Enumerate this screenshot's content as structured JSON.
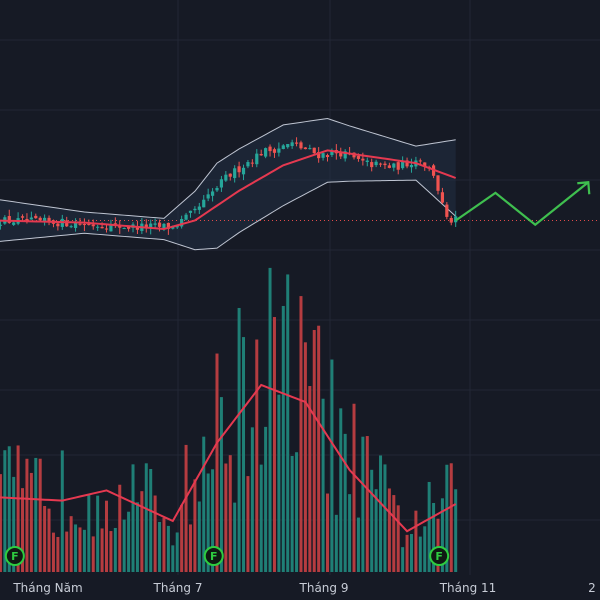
{
  "colors": {
    "background": "#161a25",
    "grid": "#222735",
    "up_candle": "#26a69a",
    "down_candle": "#ef5350",
    "moving_average": "#e53950",
    "bollinger_band": "#bfc5d2",
    "band_fill": "#233043",
    "volume_up": "#1f7f76",
    "volume_down": "#b53c40",
    "volume_ma": "#e53950",
    "forecast_arrow": "#3fbf4f",
    "dividend_marker": "#2ecc40",
    "price_line": "#e04b4b"
  },
  "chart_data": {
    "type": "candlestick",
    "title": "",
    "xlabel": "",
    "ylabel": "",
    "grid": true,
    "x_tick_labels": [
      "Tháng Năm",
      "Tháng 7",
      "Tháng 9",
      "Tháng 11",
      "2"
    ],
    "price_range": [
      0,
      100
    ],
    "volume_range": [
      0,
      100
    ],
    "price_trend_keypoints": [
      {
        "t": 0,
        "close": 38
      },
      {
        "t": 15,
        "close": 37
      },
      {
        "t": 30,
        "close": 35
      },
      {
        "t": 40,
        "close": 35
      },
      {
        "t": 45,
        "close": 42
      },
      {
        "t": 52,
        "close": 58
      },
      {
        "t": 60,
        "close": 70
      },
      {
        "t": 67,
        "close": 74
      },
      {
        "t": 73,
        "close": 69
      },
      {
        "t": 78,
        "close": 70
      },
      {
        "t": 83,
        "close": 65
      },
      {
        "t": 90,
        "close": 63
      },
      {
        "t": 96,
        "close": 67
      },
      {
        "t": 99,
        "close": 60
      },
      {
        "t": 102,
        "close": 38
      },
      {
        "t": 104,
        "close": 38
      }
    ],
    "moving_average_keypoints": [
      {
        "t": 0,
        "value": 38
      },
      {
        "t": 20,
        "value": 37
      },
      {
        "t": 38,
        "value": 34
      },
      {
        "t": 45,
        "value": 38
      },
      {
        "t": 55,
        "value": 52
      },
      {
        "t": 65,
        "value": 64
      },
      {
        "t": 75,
        "value": 71
      },
      {
        "t": 85,
        "value": 68
      },
      {
        "t": 95,
        "value": 65
      },
      {
        "t": 104,
        "value": 58
      }
    ],
    "band_width_keypoints": [
      {
        "t": 0,
        "value": 10
      },
      {
        "t": 20,
        "value": 5
      },
      {
        "t": 38,
        "value": 5
      },
      {
        "t": 50,
        "value": 20
      },
      {
        "t": 65,
        "value": 19
      },
      {
        "t": 80,
        "value": 13
      },
      {
        "t": 95,
        "value": 8
      },
      {
        "t": 104,
        "value": 18
      }
    ],
    "volume_keypoints": [
      {
        "t": 0,
        "value": 22
      },
      {
        "t": 15,
        "value": 21
      },
      {
        "t": 25,
        "value": 24
      },
      {
        "t": 40,
        "value": 15
      },
      {
        "t": 50,
        "value": 38
      },
      {
        "t": 60,
        "value": 55
      },
      {
        "t": 70,
        "value": 50
      },
      {
        "t": 80,
        "value": 30
      },
      {
        "t": 93,
        "value": 12
      },
      {
        "t": 104,
        "value": 20
      }
    ],
    "last_price": 38,
    "forecast_path": [
      {
        "t": 104,
        "value": 38
      },
      {
        "t": 113,
        "value": 51
      },
      {
        "t": 122,
        "value": 36
      },
      {
        "t": 134,
        "value": 56
      }
    ],
    "dividend_markers": [
      {
        "t": 2,
        "label": "F"
      },
      {
        "t": 47,
        "label": "F"
      },
      {
        "t": 98,
        "label": "F"
      }
    ]
  }
}
